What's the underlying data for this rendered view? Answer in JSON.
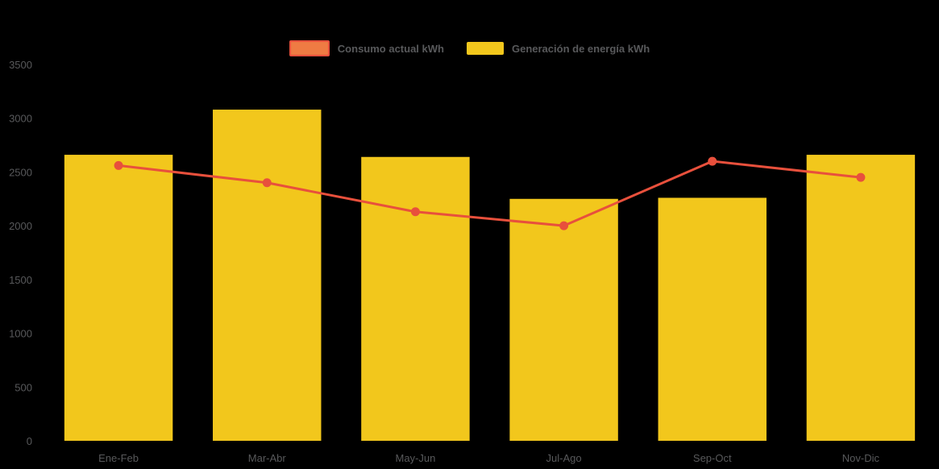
{
  "colors": {
    "background": "#000000",
    "text": "#58595b"
  },
  "chart_data": {
    "type": "combo",
    "categories": [
      "Ene-Feb",
      "Mar-Abr",
      "May-Jun",
      "Jul-Ago",
      "Sep-Oct",
      "Nov-Dic"
    ],
    "series": [
      {
        "name": "Consumo actual kWh",
        "kind": "line",
        "color": "#e8503c",
        "legend_fill": "#ef7b43",
        "values": [
          2560,
          2400,
          2130,
          2000,
          2600,
          2450
        ]
      },
      {
        "name": "Generación de energía kWh",
        "kind": "bar",
        "color": "#f2c71c",
        "values": [
          2660,
          3080,
          2640,
          2250,
          2260,
          2660
        ]
      }
    ],
    "ylim": [
      0,
      3500
    ],
    "ytick_step": 500,
    "ytick_labels": [
      "0",
      "500",
      "1000",
      "1500",
      "2000",
      "2500",
      "3000",
      "3500"
    ],
    "xlabel": "",
    "ylabel": "",
    "title": "",
    "grid": false,
    "legend_position": "top"
  }
}
